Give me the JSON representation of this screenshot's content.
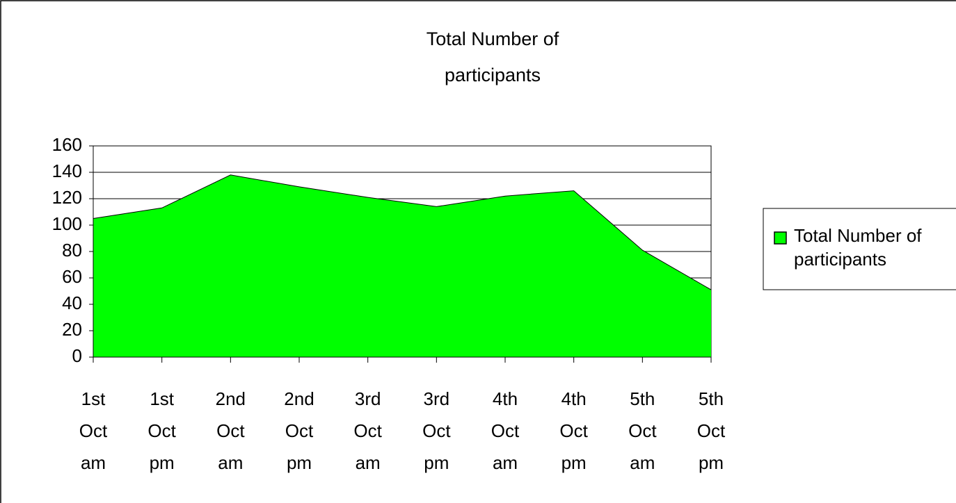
{
  "chart_data": {
    "type": "area",
    "title": "Total Number of participants",
    "categories": [
      "1st Oct am",
      "1st Oct pm",
      "2nd Oct am",
      "2nd Oct pm",
      "3rd Oct am",
      "3rd Oct pm",
      "4th Oct am",
      "4th Oct pm",
      "5th Oct am",
      "5th Oct pm"
    ],
    "series": [
      {
        "name": "Total Number of participants",
        "color": "#00ff00",
        "values": [
          105,
          113,
          138,
          129,
          121,
          114,
          122,
          126,
          81,
          51
        ]
      }
    ],
    "ylim": [
      0,
      160
    ],
    "yticks": [
      0,
      20,
      40,
      60,
      80,
      100,
      120,
      140,
      160
    ],
    "grid": true,
    "legend": "right"
  }
}
